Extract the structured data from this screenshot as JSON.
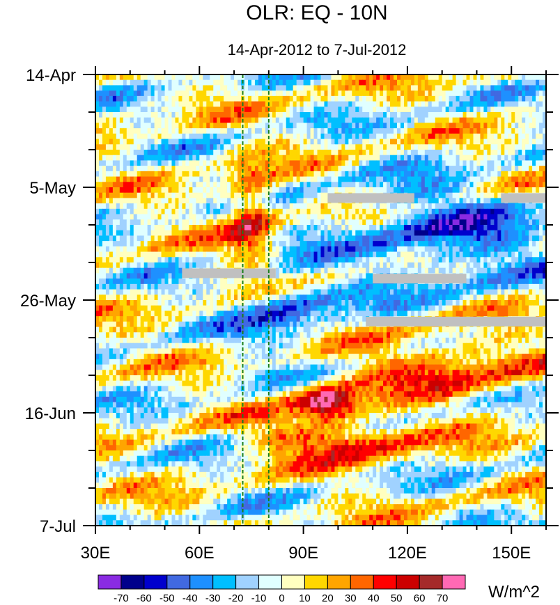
{
  "chart_data": {
    "type": "heatmap",
    "title": "OLR: EQ - 10N",
    "subtitle": "14-Apr-2012 to 7-Jul-2012",
    "units": "W/m^2",
    "x": {
      "min": 30,
      "max": 160,
      "ticks": [
        30,
        60,
        90,
        120,
        150
      ],
      "tick_labels": [
        "30E",
        "60E",
        "90E",
        "120E",
        "150E"
      ],
      "minor_step": 10
    },
    "y": {
      "start": "14-Apr-2012",
      "end": "7-Jul-2012",
      "days": 84,
      "ticks": [
        0,
        21,
        42,
        63,
        84
      ],
      "tick_labels": [
        "14-Apr",
        "5-May",
        "26-May",
        "16-Jun",
        "7-Jul"
      ],
      "minor_step": 7,
      "direction": "top-to-bottom"
    },
    "reference_lines": [
      {
        "lon": 72.5,
        "style": "dashed",
        "color": "#1a7f1a"
      },
      {
        "lon": 80,
        "style": "dashed",
        "color": "#1a7f1a"
      }
    ],
    "colorbar": {
      "levels": [
        -70,
        -60,
        -50,
        -40,
        -30,
        -20,
        -10,
        0,
        10,
        20,
        30,
        40,
        50,
        60,
        70
      ],
      "labels": [
        "-70",
        "-60",
        "-50",
        "-40",
        "-30",
        "-20",
        "-10",
        "0",
        "10",
        "20",
        "30",
        "40",
        "50",
        "60",
        "70"
      ],
      "colors": [
        "#8a2be2",
        "#00008b",
        "#0000cd",
        "#4169e1",
        "#1e90ff",
        "#00bfff",
        "#a0d2ff",
        "#e0ffff",
        "#ffffc0",
        "#ffd700",
        "#ffa500",
        "#ff6600",
        "#ff0000",
        "#cc0000",
        "#a52a2a",
        "#ff69b4"
      ],
      "missing_color": "#c0c0c0"
    },
    "features": [
      {
        "lon": [
          68,
          82
        ],
        "day": [
          17,
          35
        ],
        "value": 50,
        "note": "strong positive anomaly early May"
      },
      {
        "lon": [
          88,
          105
        ],
        "day": [
          58,
          64
        ],
        "value": 75,
        "note": "peak positive anomaly mid June"
      },
      {
        "lon": [
          80,
          125
        ],
        "day": [
          64,
          72
        ],
        "value": 50,
        "note": "positive band late June"
      },
      {
        "lon": [
          105,
          160
        ],
        "day": [
          48,
          60
        ],
        "value": 40,
        "note": "positive band early June"
      },
      {
        "lon": [
          70,
          100
        ],
        "day": [
          38,
          50
        ],
        "value": -40,
        "note": "negative band late May"
      },
      {
        "lon": [
          100,
          160
        ],
        "day": [
          20,
          40
        ],
        "value": -40,
        "note": "negative region May"
      }
    ],
    "missing_segments": [
      {
        "lon": [
          97,
          122
        ],
        "day": 23
      },
      {
        "lon": [
          147,
          160
        ],
        "day": 23
      },
      {
        "lon": [
          55,
          82
        ],
        "day": 37
      },
      {
        "lon": [
          110,
          137
        ],
        "day": 38
      },
      {
        "lon": [
          108,
          160
        ],
        "day": 46
      }
    ]
  }
}
